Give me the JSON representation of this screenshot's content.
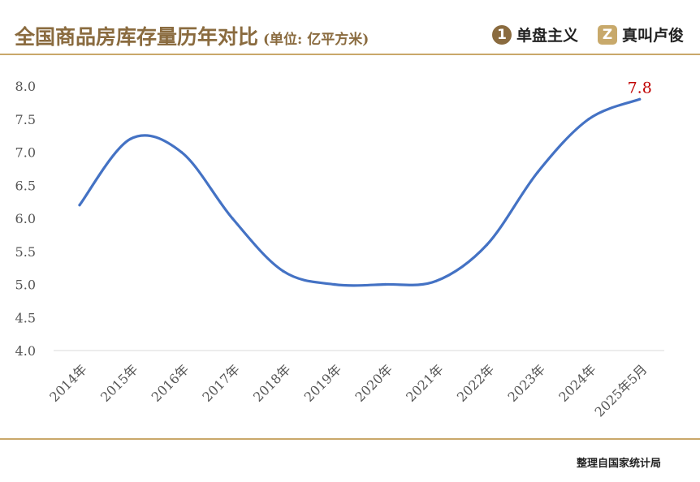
{
  "header": {
    "title": "全国商品房库存量历年对比",
    "unit": "(单位: 亿平方米)",
    "brand1": {
      "icon": "number-one-badge-icon",
      "text": "单盘主义"
    },
    "brand2": {
      "icon": "letter-z-badge-icon",
      "text": "真叫卢俊"
    }
  },
  "footer": {
    "source": "整理自国家统计局"
  },
  "colors": {
    "line": "#4472c4",
    "highlight": "#c00000",
    "accent": "#c9a86a",
    "title": "#8a6b3f"
  },
  "chart_data": {
    "type": "line",
    "categories": [
      "2014年",
      "2015年",
      "2016年",
      "2017年",
      "2018年",
      "2019年",
      "2020年",
      "2021年",
      "2022年",
      "2023年",
      "2024年",
      "2025年5月"
    ],
    "series": [
      {
        "values": [
          6.2,
          7.2,
          7.0,
          6.0,
          5.2,
          5.0,
          5.0,
          5.05,
          5.6,
          6.7,
          7.5,
          7.8
        ]
      }
    ],
    "y_ticks": [
      "4.0",
      "4.5",
      "5.0",
      "5.5",
      "6.0",
      "6.5",
      "7.0",
      "7.5",
      "8.0"
    ],
    "ylim": [
      4.0,
      8.0
    ],
    "grid": false,
    "annotation": {
      "index": 11,
      "text": "7.8"
    }
  }
}
